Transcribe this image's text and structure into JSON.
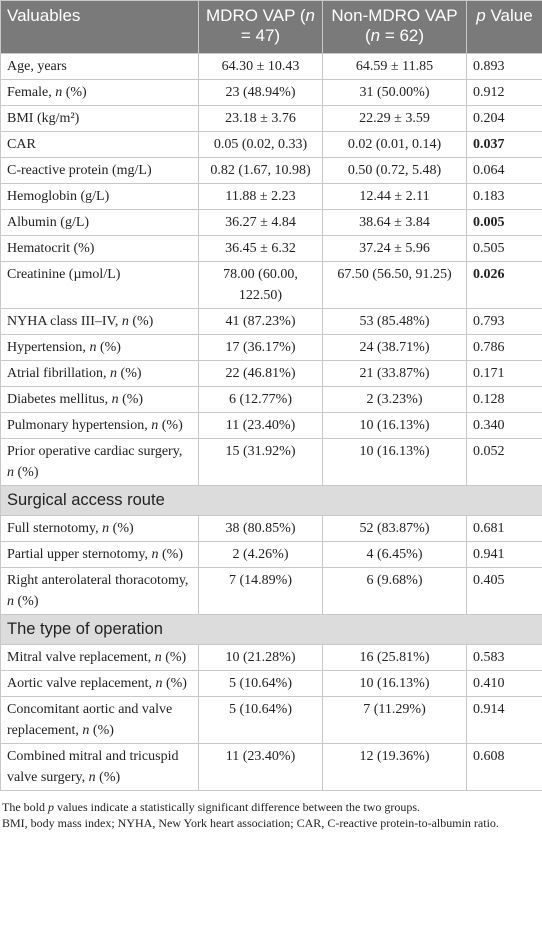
{
  "table": {
    "header": [
      "Valuables",
      "MDRO VAP (n = 47)",
      "Non-MDRO VAP (n = 62)",
      "p Value"
    ],
    "sections": [
      {
        "rows": [
          {
            "cells": [
              "Age, years",
              "64.30 ± 10.43",
              "64.59 ± 11.85",
              "0.893"
            ]
          },
          {
            "cells": [
              "Female, n (%)",
              "23 (48.94%)",
              "31 (50.00%)",
              "0.912"
            ]
          },
          {
            "cells": [
              "BMI (kg/m²)",
              "23.18 ± 3.76",
              "22.29 ± 3.59",
              "0.204"
            ]
          },
          {
            "cells": [
              "CAR",
              "0.05 (0.02, 0.33)",
              "0.02 (0.01, 0.14)",
              "0.037"
            ],
            "p_bold": true
          },
          {
            "cells": [
              "C-reactive protein (mg/L)",
              "0.82 (1.67, 10.98)",
              "0.50 (0.72, 5.48)",
              "0.064"
            ]
          },
          {
            "cells": [
              "Hemoglobin (g/L)",
              "11.88 ± 2.23",
              "12.44 ± 2.11",
              "0.183"
            ]
          },
          {
            "cells": [
              "Albumin (g/L)",
              "36.27 ± 4.84",
              "38.64 ± 3.84",
              "0.005"
            ],
            "p_bold": true
          },
          {
            "cells": [
              "Hematocrit (%)",
              "36.45 ± 6.32",
              "37.24 ± 5.96",
              "0.505"
            ]
          },
          {
            "cells": [
              "Creatinine (µmol/L)",
              "78.00 (60.00, 122.50)",
              "67.50 (56.50, 91.25)",
              "0.026"
            ],
            "p_bold": true
          },
          {
            "cells": [
              "NYHA class III–IV, n (%)",
              "41 (87.23%)",
              "53 (85.48%)",
              "0.793"
            ]
          },
          {
            "cells": [
              "Hypertension, n (%)",
              "17 (36.17%)",
              "24 (38.71%)",
              "0.786"
            ]
          },
          {
            "cells": [
              "Atrial fibrillation, n (%)",
              "22 (46.81%)",
              "21 (33.87%)",
              "0.171"
            ]
          },
          {
            "cells": [
              "Diabetes mellitus, n (%)",
              "6 (12.77%)",
              "2 (3.23%)",
              "0.128"
            ]
          },
          {
            "cells": [
              "Pulmonary hypertension, n (%)",
              "11 (23.40%)",
              "10 (16.13%)",
              "0.340"
            ]
          },
          {
            "cells": [
              "Prior operative cardiac surgery, n (%)",
              "15 (31.92%)",
              "10 (16.13%)",
              "0.052"
            ]
          }
        ]
      },
      {
        "title": "Surgical access route",
        "rows": [
          {
            "cells": [
              "Full sternotomy, n (%)",
              "38 (80.85%)",
              "52 (83.87%)",
              "0.681"
            ]
          },
          {
            "cells": [
              "Partial upper sternotomy, n (%)",
              "2 (4.26%)",
              "4 (6.45%)",
              "0.941"
            ]
          },
          {
            "cells": [
              "Right anterolateral thoracotomy, n (%)",
              "7 (14.89%)",
              "6 (9.68%)",
              "0.405"
            ]
          }
        ]
      },
      {
        "title": "The type of operation",
        "rows": [
          {
            "cells": [
              "Mitral valve replacement, n (%)",
              "10 (21.28%)",
              "16 (25.81%)",
              "0.583"
            ]
          },
          {
            "cells": [
              "Aortic valve replacement, n (%)",
              "5 (10.64%)",
              "10 (16.13%)",
              "0.410"
            ]
          },
          {
            "cells": [
              "Concomitant aortic and valve replacement, n (%)",
              "5 (10.64%)",
              "7 (11.29%)",
              "0.914"
            ]
          },
          {
            "cells": [
              "Combined mitral and tricuspid valve surgery, n (%)",
              "11 (23.40%)",
              "12 (19.36%)",
              "0.608"
            ]
          }
        ]
      }
    ]
  },
  "footnotes": [
    "The bold p values indicate a statistically significant difference between the two groups.",
    "BMI, body mass index; NYHA, New York heart association; CAR, C-reactive protein-to-albumin ratio."
  ]
}
